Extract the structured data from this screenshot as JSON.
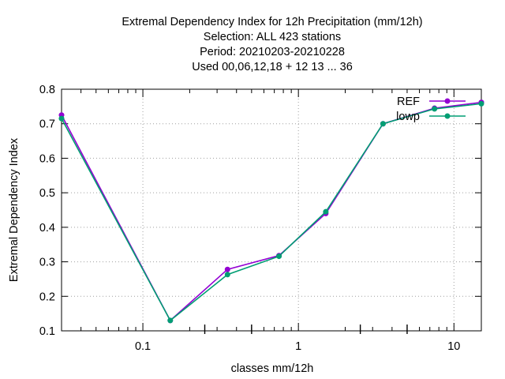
{
  "chart_data": {
    "type": "line",
    "title_lines": [
      "Extremal Dependency Index  for 12h Precipitation (mm/12h)",
      "Selection: ALL    423 stations",
      "Period: 20210203-20210228",
      "Used  00,06,12,18  + 12 13 ... 36"
    ],
    "xlabel": "classes mm/12h",
    "ylabel": "Extremal Dependency Index",
    "x_scale": "log",
    "xlim": [
      0.03,
      15
    ],
    "ylim": [
      0.1,
      0.8
    ],
    "x_ticks": [
      {
        "value": 0.1,
        "label": "0.1"
      },
      {
        "value": 1,
        "label": "1"
      },
      {
        "value": 10,
        "label": "10"
      }
    ],
    "y_ticks": [
      {
        "value": 0.1,
        "label": "0.1"
      },
      {
        "value": 0.2,
        "label": "0.2"
      },
      {
        "value": 0.3,
        "label": "0.3"
      },
      {
        "value": 0.4,
        "label": "0.4"
      },
      {
        "value": 0.5,
        "label": "0.5"
      },
      {
        "value": 0.6,
        "label": "0.6"
      },
      {
        "value": 0.7,
        "label": "0.7"
      },
      {
        "value": 0.8,
        "label": "0.8"
      }
    ],
    "grid": true,
    "legend_position": "top-right",
    "series": [
      {
        "name": "REF",
        "color": "#9400d3",
        "x": [
          0.03,
          0.15,
          0.35,
          0.75,
          1.5,
          3.5,
          7.5,
          15
        ],
        "y": [
          0.725,
          0.13,
          0.278,
          0.318,
          0.44,
          0.7,
          0.745,
          0.762
        ]
      },
      {
        "name": "lowp",
        "color": "#009e73",
        "x": [
          0.03,
          0.15,
          0.35,
          0.75,
          1.5,
          3.5,
          7.5,
          15
        ],
        "y": [
          0.715,
          0.13,
          0.263,
          0.316,
          0.445,
          0.7,
          0.743,
          0.758
        ]
      }
    ]
  }
}
